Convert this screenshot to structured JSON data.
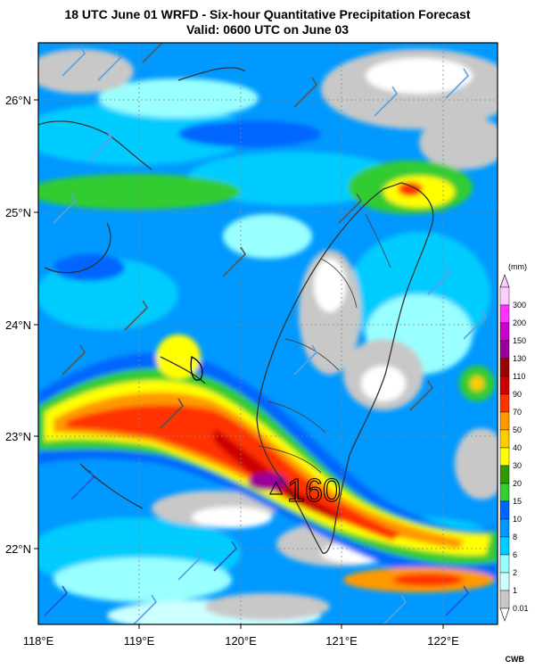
{
  "header": {
    "title": "18 UTC June 01 WRFD - Six-hour Quantitative Precipitation Forecast",
    "subtitle": "Valid: 0600 UTC on June 03"
  },
  "axes": {
    "longitude_labels": [
      "118°E",
      "119°E",
      "120°E",
      "121°E",
      "122°E"
    ],
    "latitude_labels": [
      "26°N",
      "25°N",
      "24°N",
      "23°N",
      "22°N"
    ]
  },
  "legend": {
    "unit": "(mm)",
    "levels": [
      {
        "label": "300",
        "color": "#ffccff"
      },
      {
        "label": "200",
        "color": "#ff33ff"
      },
      {
        "label": "150",
        "color": "#cc00cc"
      },
      {
        "label": "130",
        "color": "#990099"
      },
      {
        "label": "110",
        "color": "#990000"
      },
      {
        "label": "90",
        "color": "#cc0000"
      },
      {
        "label": "70",
        "color": "#ff3300"
      },
      {
        "label": "50",
        "color": "#ff9900"
      },
      {
        "label": "40",
        "color": "#ffcc00"
      },
      {
        "label": "30",
        "color": "#ffff00"
      },
      {
        "label": "20",
        "color": "#339900"
      },
      {
        "label": "15",
        "color": "#33cc33"
      },
      {
        "label": "10",
        "color": "#0066ff"
      },
      {
        "label": "8",
        "color": "#0099ff"
      },
      {
        "label": "6",
        "color": "#00ccff"
      },
      {
        "label": "2",
        "color": "#99ffff"
      },
      {
        "label": "1",
        "color": "#ccffff"
      },
      {
        "label": "0.01",
        "color": "#c8c8c8"
      }
    ]
  },
  "annotation": {
    "max_marker": "△",
    "max_value": "160"
  },
  "credit": "CWB"
}
